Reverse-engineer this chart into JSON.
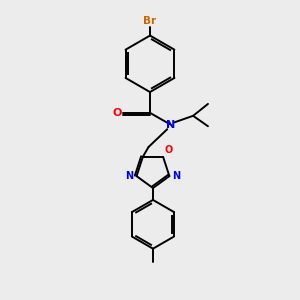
{
  "background_color": "#ececec",
  "bond_color": "#000000",
  "N_color": "#0000ff",
  "O_color": "#ff0000",
  "Br_color": "#cc6600",
  "figsize": [
    3.0,
    3.0
  ],
  "dpi": 100,
  "xlim": [
    0,
    10
  ],
  "ylim": [
    0,
    10
  ]
}
